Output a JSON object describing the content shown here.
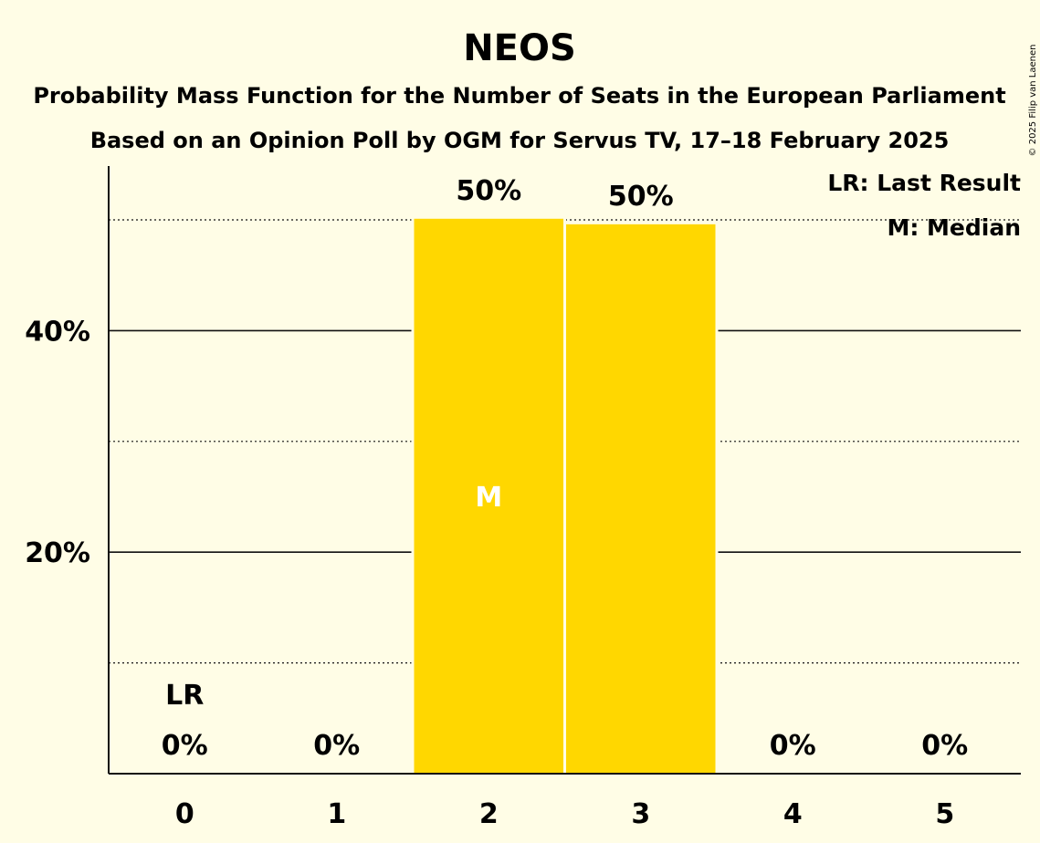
{
  "chart_data": {
    "type": "bar",
    "title": "NEOS",
    "subtitle_lines": [
      "Probability Mass Function for the Number of Seats in the European Parliament",
      "Based on an Opinion Poll by OGM for Servus TV, 17–18 February 2025"
    ],
    "categories": [
      "0",
      "1",
      "2",
      "3",
      "4",
      "5"
    ],
    "values": [
      0,
      0,
      50.1,
      49.6,
      0,
      0
    ],
    "data_labels": [
      "0%",
      "0%",
      "50%",
      "50%",
      "0%",
      "0%"
    ],
    "y_ticks": [
      {
        "value": 20,
        "label": "20%"
      },
      {
        "value": 40,
        "label": "40%"
      }
    ],
    "ylim": [
      0,
      55
    ],
    "last_result": {
      "category_index": 0,
      "label": "LR"
    },
    "median": {
      "category_index": 2,
      "label": "M"
    },
    "legend": [
      "LR: Last Result",
      "M: Median"
    ],
    "legend_position": "top-right",
    "bar_color": "#FFD700",
    "background_color": "#FFFDE6",
    "copyright": "© 2025 Filip van Laenen"
  }
}
